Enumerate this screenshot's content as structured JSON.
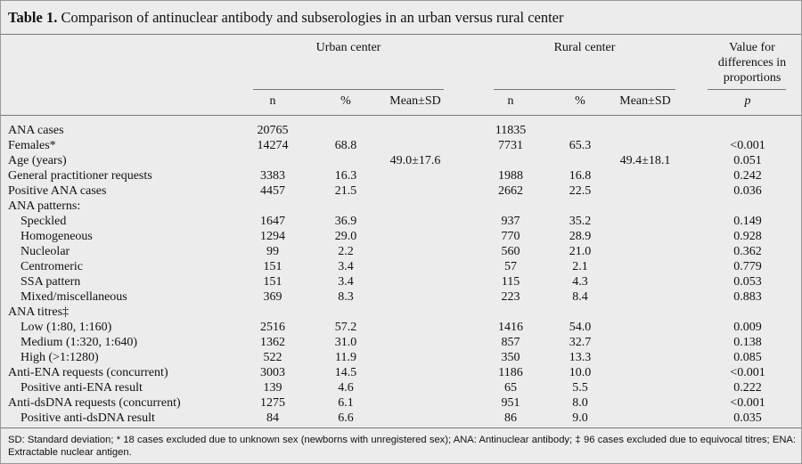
{
  "title": {
    "label": "Table 1.",
    "text": "Comparison of antinuclear antibody and subserologies in an urban versus rural center"
  },
  "table": {
    "group_headers": [
      "Urban center",
      "Rural center",
      "Value for differences in proportions"
    ],
    "column_headers": [
      "n",
      "%",
      "Mean±SD",
      "n",
      "%",
      "Mean±SD",
      "p"
    ],
    "rows": [
      {
        "indent": 0,
        "cells": [
          "ANA cases",
          "20765",
          null,
          null,
          "11835",
          null,
          null,
          null
        ]
      },
      {
        "indent": 0,
        "cells": [
          "Females*",
          "14274",
          "68.8",
          null,
          "7731",
          "65.3",
          null,
          "<0.001"
        ]
      },
      {
        "indent": 0,
        "cells": [
          "Age (years)",
          null,
          null,
          "49.0±17.6",
          null,
          null,
          "49.4±18.1",
          "0.051"
        ]
      },
      {
        "indent": 0,
        "cells": [
          "General practitioner requests",
          "3383",
          "16.3",
          null,
          "1988",
          "16.8",
          null,
          "0.242"
        ]
      },
      {
        "indent": 0,
        "cells": [
          "Positive ANA cases",
          "4457",
          "21.5",
          null,
          "2662",
          "22.5",
          null,
          "0.036"
        ]
      },
      {
        "indent": 0,
        "cells": [
          "ANA patterns:",
          null,
          null,
          null,
          null,
          null,
          null,
          null
        ]
      },
      {
        "indent": 1,
        "cells": [
          "Speckled",
          "1647",
          "36.9",
          null,
          "937",
          "35.2",
          null,
          "0.149"
        ]
      },
      {
        "indent": 1,
        "cells": [
          "Homogeneous",
          "1294",
          "29.0",
          null,
          "770",
          "28.9",
          null,
          "0.928"
        ]
      },
      {
        "indent": 1,
        "cells": [
          "Nucleolar",
          "99",
          "2.2",
          null,
          "560",
          "21.0",
          null,
          "0.362"
        ]
      },
      {
        "indent": 1,
        "cells": [
          "Centromeric",
          "151",
          "3.4",
          null,
          "57",
          "2.1",
          null,
          "0.779"
        ]
      },
      {
        "indent": 1,
        "cells": [
          "SSA pattern",
          "151",
          "3.4",
          null,
          "115",
          "4.3",
          null,
          "0.053"
        ]
      },
      {
        "indent": 1,
        "cells": [
          "Mixed/miscellaneous",
          "369",
          "8.3",
          null,
          "223",
          "8.4",
          null,
          "0.883"
        ]
      },
      {
        "indent": 0,
        "cells": [
          "ANA titres‡",
          null,
          null,
          null,
          null,
          null,
          null,
          null
        ]
      },
      {
        "indent": 1,
        "cells": [
          "Low (1:80, 1:160)",
          "2516",
          "57.2",
          null,
          "1416",
          "54.0",
          null,
          "0.009"
        ]
      },
      {
        "indent": 1,
        "cells": [
          "Medium (1:320, 1:640)",
          "1362",
          "31.0",
          null,
          "857",
          "32.7",
          null,
          "0.138"
        ]
      },
      {
        "indent": 1,
        "cells": [
          "High (>1:1280)",
          "522",
          "11.9",
          null,
          "350",
          "13.3",
          null,
          "0.085"
        ]
      },
      {
        "indent": 0,
        "cells": [
          "Anti-ENA requests (concurrent)",
          "3003",
          "14.5",
          null,
          "1186",
          "10.0",
          null,
          "<0.001"
        ]
      },
      {
        "indent": 1,
        "cells": [
          "Positive anti-ENA result",
          "139",
          "4.6",
          null,
          "65",
          "5.5",
          null,
          "0.222"
        ]
      },
      {
        "indent": 0,
        "cells": [
          "Anti-dsDNA requests (concurrent)",
          "1275",
          "6.1",
          null,
          "951",
          "8.0",
          null,
          "<0.001"
        ]
      },
      {
        "indent": 1,
        "cells": [
          "Positive anti-dsDNA result",
          "84",
          "6.6",
          null,
          "86",
          "9.0",
          null,
          "0.035"
        ]
      }
    ]
  },
  "footnote": "SD: Standard deviation; * 18 cases excluded due to unknown sex (newborns with unregistered sex); ANA: Antinuclear antibody; ‡ 96 cases excluded due to equivocal titres; ENA: Extractable nuclear antigen."
}
